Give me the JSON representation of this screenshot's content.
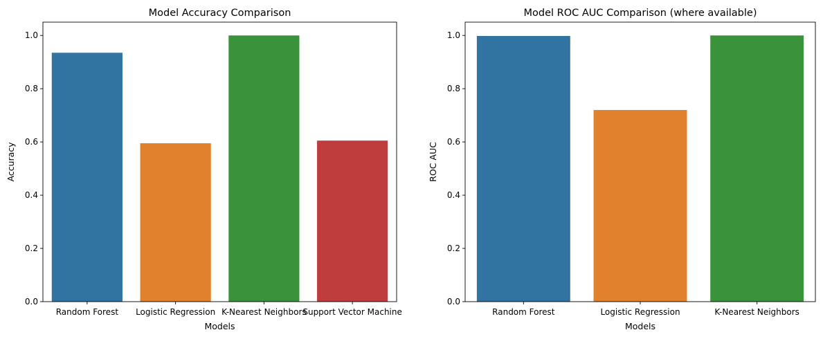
{
  "chart_data": [
    {
      "type": "bar",
      "title": "Model Accuracy Comparison",
      "xlabel": "Models",
      "ylabel": "Accuracy",
      "categories": [
        "Random Forest",
        "Logistic Regression",
        "K-Nearest Neighbors",
        "Support Vector Machine"
      ],
      "values": [
        0.935,
        0.595,
        1.0,
        0.605
      ],
      "colors": [
        "#3274a1",
        "#e1812c",
        "#3a923a",
        "#c03d3e"
      ],
      "ylim": [
        0,
        1.05
      ],
      "yticks": [
        0.0,
        0.2,
        0.4,
        0.6,
        0.8,
        1.0
      ],
      "ytick_labels": [
        "0.0",
        "0.2",
        "0.4",
        "0.6",
        "0.8",
        "1.0"
      ],
      "grid": false
    },
    {
      "type": "bar",
      "title": "Model ROC AUC Comparison (where available)",
      "xlabel": "Models",
      "ylabel": "ROC AUC",
      "categories": [
        "Random Forest",
        "Logistic Regression",
        "K-Nearest Neighbors"
      ],
      "values": [
        0.998,
        0.72,
        1.0
      ],
      "colors": [
        "#3274a1",
        "#e1812c",
        "#3a923a"
      ],
      "ylim": [
        0,
        1.05
      ],
      "yticks": [
        0.0,
        0.2,
        0.4,
        0.6,
        0.8,
        1.0
      ],
      "ytick_labels": [
        "0.0",
        "0.2",
        "0.4",
        "0.6",
        "0.8",
        "1.0"
      ],
      "grid": false
    }
  ]
}
